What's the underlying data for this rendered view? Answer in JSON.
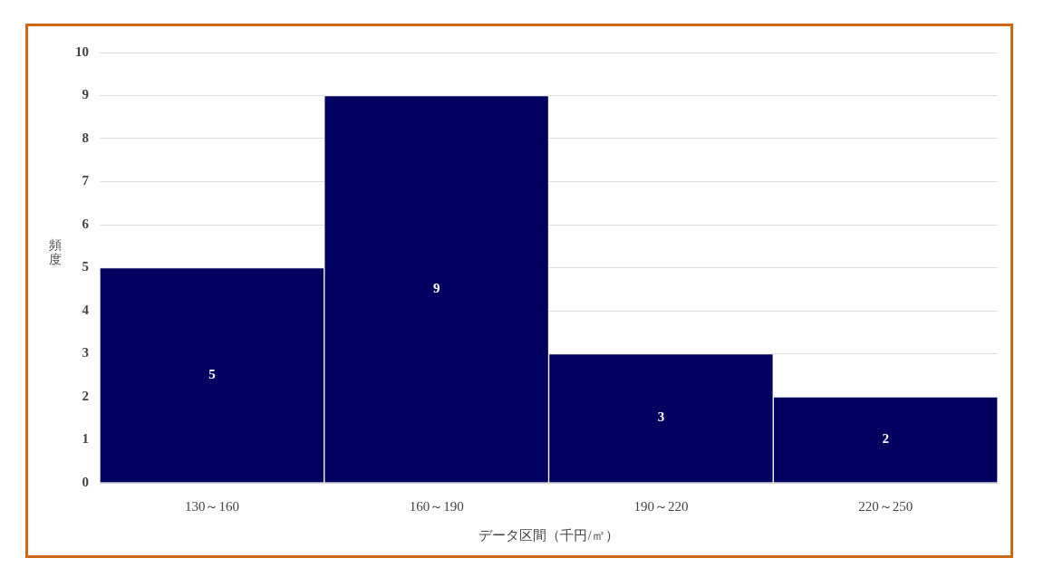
{
  "chart_data": {
    "type": "bar",
    "xlabel": "データ区間（千円/㎡）",
    "ylabel": "頻度",
    "categories": [
      "130～160",
      "160～190",
      "190～220",
      "220～250"
    ],
    "values": [
      5,
      9,
      3,
      2
    ],
    "color": "#000060",
    "ylim": [
      0,
      10
    ],
    "yticks": [
      0,
      1,
      2,
      3,
      4,
      5,
      6,
      7,
      8,
      9,
      10
    ],
    "grid": "y",
    "data_labels": true
  }
}
